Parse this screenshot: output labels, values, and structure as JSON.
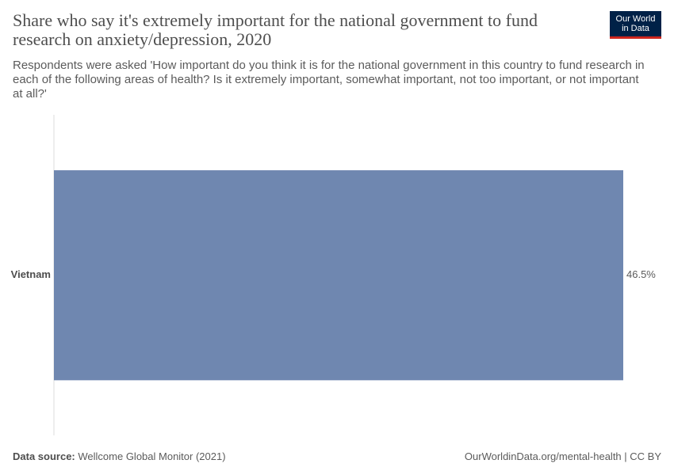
{
  "chart_data": {
    "type": "bar",
    "title": "Share who say it's extremely important for the national government to fund research on anxiety/depression, 2020",
    "subtitle": "Respondents were asked 'How important do you think it is for the national government in this country to fund research in each of the following areas of health? Is it extremely important, somewhat important, not too important, or not important at all?'",
    "logo": "Our World in Data",
    "categories": [
      "Vietnam"
    ],
    "values": [
      46.5
    ],
    "value_labels": [
      "46.5%"
    ],
    "color": "#6f87b0",
    "source_label": "Data source:",
    "source": "Wellcome Global Monitor (2021)",
    "note": "OurWorldinData.org/mental-health | CC BY"
  }
}
